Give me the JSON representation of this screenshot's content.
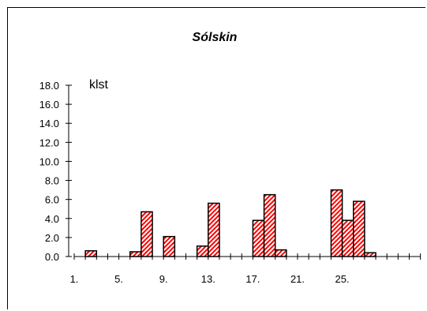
{
  "chart_data": {
    "type": "bar",
    "title": "Sólskin",
    "ylabel": "klst",
    "xlabel": "",
    "ylim": [
      0,
      18
    ],
    "yticks": [
      "0.0",
      "2.0",
      "4.0",
      "6.0",
      "8.0",
      "10.0",
      "12.0",
      "14.0",
      "16.0",
      "18.0"
    ],
    "xtick_labels": [
      {
        "day": 1,
        "label": "1."
      },
      {
        "day": 5,
        "label": "5."
      },
      {
        "day": 9,
        "label": "9."
      },
      {
        "day": 13,
        "label": "13."
      },
      {
        "day": 17,
        "label": "17."
      },
      {
        "day": 21,
        "label": "21."
      },
      {
        "day": 25,
        "label": "25."
      }
    ],
    "days": [
      1,
      2,
      3,
      4,
      5,
      6,
      7,
      8,
      9,
      10,
      11,
      12,
      13,
      14,
      15,
      16,
      17,
      18,
      19,
      20,
      21,
      22,
      23,
      24,
      25,
      26,
      27,
      28,
      29,
      30,
      31
    ],
    "values": [
      0,
      0.6,
      0,
      0,
      0,
      0.5,
      4.7,
      0,
      2.1,
      0,
      0,
      1.1,
      5.6,
      0,
      0,
      0,
      3.8,
      6.5,
      0.7,
      0,
      0,
      0,
      0,
      7.0,
      3.8,
      5.8,
      0.4,
      0,
      0,
      0,
      0
    ],
    "grid": false,
    "legend": "none",
    "colors": {
      "bar_stripe": "#ff0000",
      "bar_fill": "#ffffff",
      "outline": "#000000"
    }
  }
}
